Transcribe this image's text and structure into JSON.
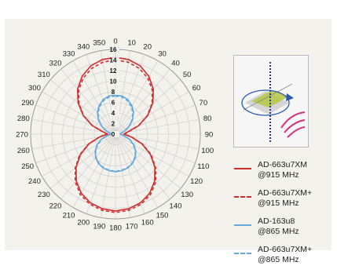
{
  "chart_data": {
    "type": "polar-line",
    "angle_ticks": [
      "0",
      "10",
      "20",
      "30",
      "40",
      "50",
      "60",
      "70",
      "80",
      "90",
      "100",
      "110",
      "120",
      "130",
      "140",
      "150",
      "160",
      "170",
      "180",
      "190",
      "200",
      "210",
      "220",
      "230",
      "240",
      "250",
      "260",
      "270",
      "280",
      "290",
      "300",
      "310",
      "320",
      "330",
      "340",
      "350"
    ],
    "radial_ticks": [
      "0",
      "2",
      "4",
      "6",
      "8",
      "10",
      "12",
      "14",
      "16"
    ],
    "rlim": [
      0,
      16
    ],
    "grid": true,
    "series": [
      {
        "name": "AD-663u7XM\n@915 MHz",
        "color": "#d02c2c",
        "style": "solid",
        "angles": [
          0,
          10,
          20,
          30,
          40,
          50,
          60,
          70,
          80,
          90,
          100,
          110,
          120,
          130,
          140,
          150,
          160,
          170,
          180,
          190,
          200,
          210,
          220,
          230,
          240,
          250,
          260,
          270,
          280,
          290,
          300,
          310,
          320,
          330,
          340,
          350
        ],
        "values": [
          14.5,
          14.3,
          13.7,
          12.6,
          11.1,
          9.2,
          7.0,
          4.6,
          2.3,
          1.6,
          3.0,
          5.3,
          7.6,
          9.7,
          11.5,
          12.9,
          13.8,
          14.3,
          14.5,
          14.3,
          13.8,
          12.9,
          11.5,
          9.7,
          7.6,
          5.3,
          3.0,
          1.5,
          2.3,
          4.6,
          7.0,
          9.2,
          11.1,
          12.6,
          13.7,
          14.3
        ]
      },
      {
        "name": "AD-663u7XM+\n@915 MHz",
        "color": "#d02c2c",
        "style": "dashed",
        "angles": [
          0,
          10,
          20,
          30,
          40,
          50,
          60,
          70,
          80,
          90,
          100,
          110,
          120,
          130,
          140,
          150,
          160,
          170,
          180,
          190,
          200,
          210,
          220,
          230,
          240,
          250,
          260,
          270,
          280,
          290,
          300,
          310,
          320,
          330,
          340,
          350
        ],
        "values": [
          14.0,
          13.8,
          13.2,
          12.2,
          10.8,
          9.0,
          6.9,
          4.6,
          2.4,
          1.7,
          3.1,
          5.4,
          7.8,
          9.9,
          11.8,
          13.2,
          14.1,
          14.6,
          14.8,
          14.6,
          14.1,
          13.2,
          11.8,
          9.9,
          7.8,
          5.4,
          3.1,
          1.6,
          2.4,
          4.6,
          6.9,
          9.0,
          10.8,
          12.2,
          13.2,
          13.8
        ]
      },
      {
        "name": "AD-163u8\n@865 MHz",
        "color": "#63a7dc",
        "style": "solid",
        "angles": [
          0,
          10,
          20,
          30,
          40,
          50,
          60,
          70,
          80,
          90,
          100,
          110,
          120,
          130,
          140,
          150,
          160,
          170,
          180,
          190,
          200,
          210,
          220,
          230,
          240,
          250,
          260,
          270,
          280,
          290,
          300,
          310,
          320,
          330,
          340,
          350
        ],
        "values": [
          7.4,
          7.3,
          6.9,
          6.2,
          5.3,
          4.2,
          3.0,
          1.9,
          1.1,
          0.9,
          1.6,
          2.8,
          4.0,
          5.0,
          5.8,
          6.4,
          6.8,
          7.0,
          7.1,
          7.0,
          6.8,
          6.4,
          5.8,
          5.0,
          4.0,
          2.8,
          1.6,
          0.8,
          1.1,
          1.9,
          3.0,
          4.2,
          5.3,
          6.2,
          6.9,
          7.3
        ]
      },
      {
        "name": "AD-663u7XM+\n@865 MHz",
        "color": "#63a7dc",
        "style": "dashed",
        "angles": [
          0,
          10,
          20,
          30,
          40,
          50,
          60,
          70,
          80,
          90,
          100,
          110,
          120,
          130,
          140,
          150,
          160,
          170,
          180,
          190,
          200,
          210,
          220,
          230,
          240,
          250,
          260,
          270,
          280,
          290,
          300,
          310,
          320,
          330,
          340,
          350
        ],
        "values": [
          7.2,
          7.1,
          6.7,
          6.0,
          5.1,
          4.1,
          2.9,
          1.9,
          1.1,
          0.9,
          1.6,
          2.7,
          3.9,
          4.9,
          5.7,
          6.3,
          6.7,
          6.9,
          7.0,
          6.9,
          6.7,
          6.3,
          5.7,
          4.9,
          3.9,
          2.7,
          1.6,
          0.8,
          1.1,
          1.9,
          2.9,
          4.1,
          5.1,
          6.0,
          6.7,
          7.1
        ]
      }
    ]
  },
  "inset": {
    "icons": [
      "antenna-plane-icon",
      "rotation-arrow-icon",
      "radio-wave-icon"
    ],
    "colors": {
      "axis": "#2238a8",
      "plane": "#b6c94a",
      "arrow": "#2a58b8",
      "waves": "#d6307f"
    }
  }
}
